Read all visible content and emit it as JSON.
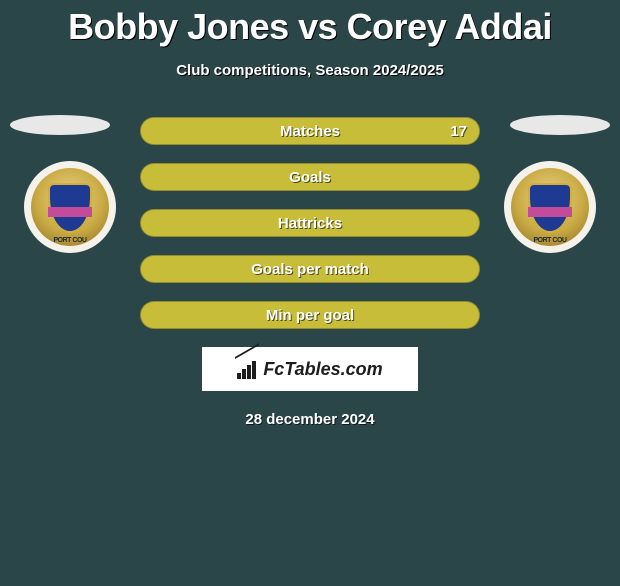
{
  "title": "Bobby Jones vs Corey Addai",
  "subtitle": "Club competitions, Season 2024/2025",
  "stats": [
    {
      "label": "Matches",
      "value_right": "17",
      "bg": "#c7bd39",
      "left_pct": 0,
      "left_color": "#c7bd39",
      "right_pct": 100,
      "right_color": "#c7bd39"
    },
    {
      "label": "Goals",
      "value_right": "",
      "bg": "#c7bd39",
      "left_pct": 0,
      "left_color": "#c7bd39",
      "right_pct": 0,
      "right_color": "#c7bd39"
    },
    {
      "label": "Hattricks",
      "value_right": "",
      "bg": "#c7bd39",
      "left_pct": 0,
      "left_color": "#c7bd39",
      "right_pct": 0,
      "right_color": "#c7bd39"
    },
    {
      "label": "Goals per match",
      "value_right": "",
      "bg": "#c7bd39",
      "left_pct": 0,
      "left_color": "#c7bd39",
      "right_pct": 0,
      "right_color": "#c7bd39"
    },
    {
      "label": "Min per goal",
      "value_right": "",
      "bg": "#c7bd39",
      "left_pct": 0,
      "left_color": "#c7bd39",
      "right_pct": 0,
      "right_color": "#c7bd39"
    }
  ],
  "brand": "FcTables.com",
  "date": "28 december 2024",
  "crest_label_left": "PORT COU",
  "crest_label_right": "PORT COU",
  "colors": {
    "background": "#2b4648",
    "text": "#ffffff",
    "bar_bg": "#c7bd39",
    "ellipse": "#e8e8e8",
    "brand_bg": "#ffffff",
    "brand_text": "#1d1d1d"
  }
}
